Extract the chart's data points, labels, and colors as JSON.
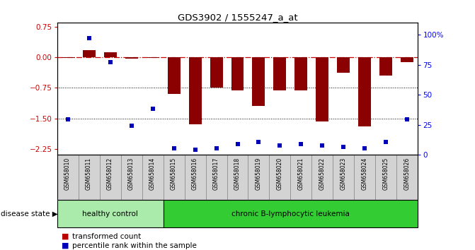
{
  "title": "GDS3902 / 1555247_a_at",
  "samples": [
    "GSM658010",
    "GSM658011",
    "GSM658012",
    "GSM658013",
    "GSM658014",
    "GSM658015",
    "GSM658016",
    "GSM658017",
    "GSM658018",
    "GSM658019",
    "GSM658020",
    "GSM658021",
    "GSM658022",
    "GSM658023",
    "GSM658024",
    "GSM658025",
    "GSM658026"
  ],
  "bar_values": [
    -0.02,
    0.17,
    0.12,
    -0.03,
    -0.02,
    -0.9,
    -1.65,
    -0.75,
    -0.82,
    -1.2,
    -0.82,
    -0.82,
    -1.58,
    -0.38,
    -1.7,
    -0.45,
    -0.12
  ],
  "dot_values_pct": [
    27,
    88,
    70,
    22,
    35,
    5,
    4,
    5,
    8,
    10,
    7,
    8,
    7,
    6,
    5,
    10,
    27
  ],
  "bar_color": "#8B0000",
  "dot_color": "#0000BB",
  "ref_line_color": "#CC0000",
  "grid_line_color": "#000000",
  "bg_color": "#FFFFFF",
  "ylim_left": [
    -2.4,
    0.85
  ],
  "ylim_right": [
    0,
    110
  ],
  "yticks_left": [
    0.75,
    0.0,
    -0.75,
    -1.5,
    -2.25
  ],
  "yticks_right": [
    100,
    75,
    50,
    25,
    0
  ],
  "ytick_labels_right": [
    "100%",
    "75",
    "50",
    "25",
    "0"
  ],
  "groups": [
    {
      "label": "healthy control",
      "start": 0,
      "end": 5,
      "color": "#AAEAAA"
    },
    {
      "label": "chronic B-lymphocytic leukemia",
      "start": 5,
      "end": 17,
      "color": "#33CC33"
    }
  ],
  "group_label": "disease state",
  "legend_items": [
    {
      "label": "transformed count",
      "color": "#BB0000"
    },
    {
      "label": "percentile rank within the sample",
      "color": "#0000BB"
    }
  ]
}
